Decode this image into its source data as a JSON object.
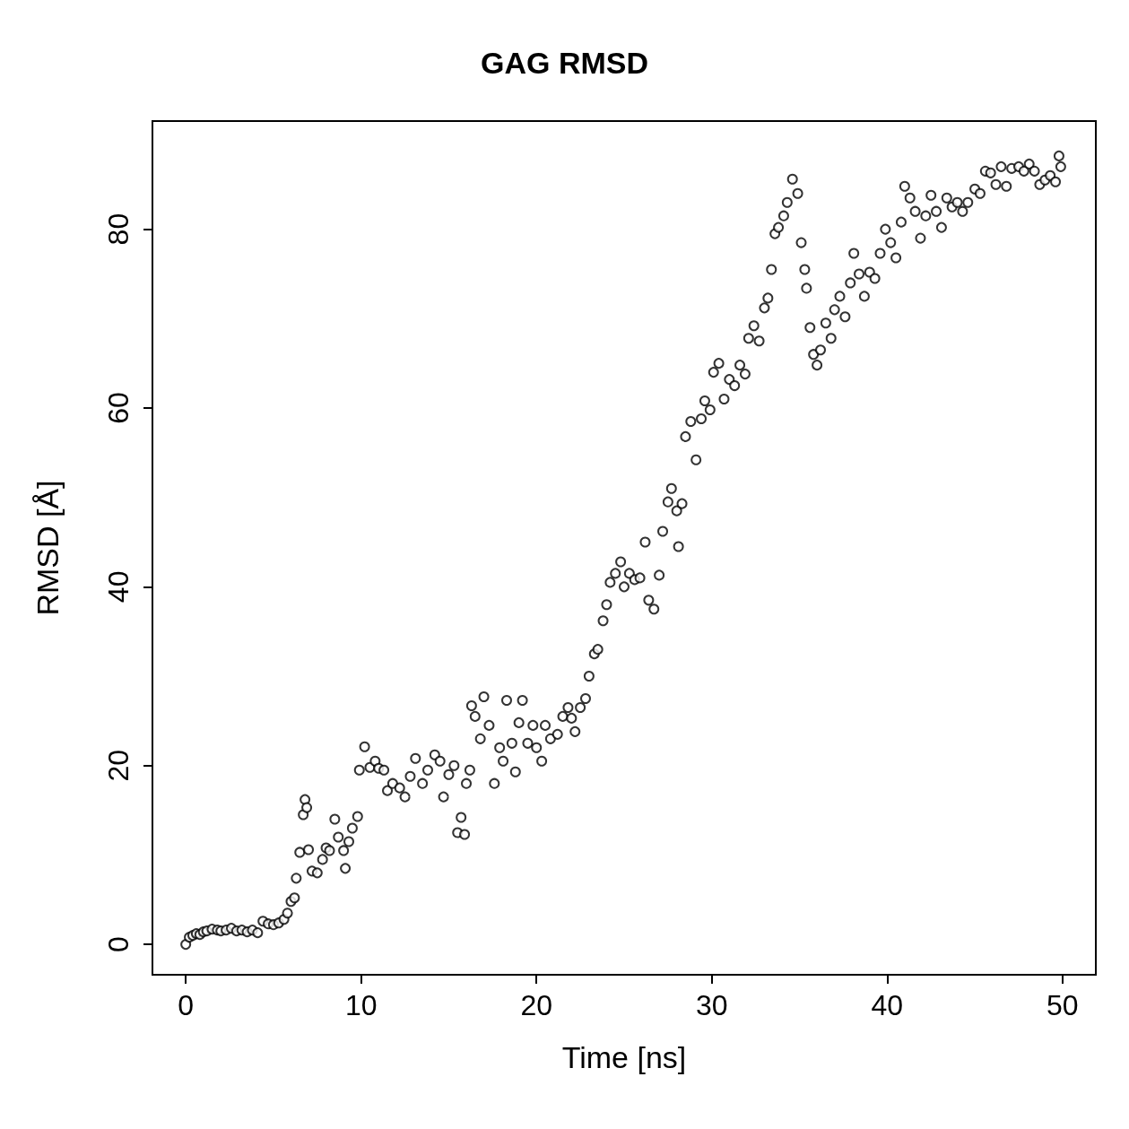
{
  "chart_data": {
    "type": "scatter",
    "title": "GAG RMSD",
    "xlabel": "Time [ns]",
    "ylabel": "RMSD [Å]",
    "marker": "circle",
    "xlim": [
      -1.9,
      51.9
    ],
    "xticks": [
      0,
      10,
      20,
      30,
      40,
      50
    ],
    "ylim": [
      -3.4,
      92.1
    ],
    "yticks": [
      0,
      20,
      40,
      60,
      80
    ],
    "series": [
      {
        "color": "#000000",
        "x": [
          0.0,
          0.2,
          0.4,
          0.6,
          0.8,
          1.0,
          1.2,
          1.5,
          1.8,
          2.0,
          2.3,
          2.6,
          2.9,
          3.2,
          3.5,
          3.8,
          4.1,
          4.4,
          4.7,
          5.0,
          5.3,
          5.6,
          5.8,
          6.0,
          6.2,
          6.3,
          6.5,
          6.7,
          6.8,
          6.9,
          7.0,
          7.2,
          7.5,
          7.8,
          8.0,
          8.2,
          8.5,
          8.7,
          9.0,
          9.1,
          9.3,
          9.5,
          9.8,
          9.9,
          10.2,
          10.5,
          10.8,
          11.0,
          11.3,
          11.5,
          11.8,
          12.2,
          12.5,
          12.8,
          13.1,
          13.5,
          13.8,
          14.2,
          14.5,
          14.7,
          15.0,
          15.3,
          15.5,
          15.7,
          15.9,
          16.0,
          16.2,
          16.3,
          16.5,
          16.8,
          17.0,
          17.3,
          17.6,
          17.9,
          18.1,
          18.3,
          18.6,
          18.8,
          19.0,
          19.2,
          19.5,
          19.8,
          20.0,
          20.3,
          20.5,
          20.8,
          21.2,
          21.5,
          21.8,
          22.0,
          22.2,
          22.5,
          22.8,
          23.0,
          23.3,
          23.5,
          23.8,
          24.0,
          24.2,
          24.5,
          24.8,
          25.0,
          25.3,
          25.6,
          25.9,
          26.2,
          26.4,
          26.7,
          27.0,
          27.2,
          27.5,
          27.7,
          28.0,
          28.1,
          28.3,
          28.5,
          28.8,
          29.1,
          29.4,
          29.6,
          29.9,
          30.1,
          30.4,
          30.7,
          31.0,
          31.3,
          31.6,
          31.9,
          32.1,
          32.4,
          32.7,
          33.0,
          33.2,
          33.4,
          33.6,
          33.8,
          34.1,
          34.3,
          34.6,
          34.9,
          35.1,
          35.3,
          35.4,
          35.6,
          35.8,
          36.0,
          36.2,
          36.5,
          36.8,
          37.0,
          37.3,
          37.6,
          37.9,
          38.1,
          38.4,
          38.7,
          39.0,
          39.3,
          39.6,
          39.9,
          40.2,
          40.5,
          40.8,
          41.0,
          41.3,
          41.6,
          41.9,
          42.2,
          42.5,
          42.8,
          43.1,
          43.4,
          43.7,
          44.0,
          44.3,
          44.6,
          45.0,
          45.3,
          45.6,
          45.9,
          46.2,
          46.5,
          46.8,
          47.1,
          47.5,
          47.8,
          48.1,
          48.4,
          48.7,
          49.0,
          49.3,
          49.6,
          49.8,
          49.9
        ],
        "values": [
          0.0,
          0.8,
          1.0,
          1.2,
          1.1,
          1.4,
          1.5,
          1.7,
          1.6,
          1.5,
          1.6,
          1.8,
          1.5,
          1.6,
          1.4,
          1.6,
          1.3,
          2.6,
          2.3,
          2.2,
          2.4,
          2.8,
          3.5,
          4.8,
          5.2,
          7.4,
          10.3,
          14.5,
          16.2,
          15.3,
          10.6,
          8.2,
          8.0,
          9.5,
          10.8,
          10.5,
          14.0,
          12.0,
          10.5,
          8.5,
          11.5,
          13.0,
          14.3,
          19.5,
          22.1,
          19.8,
          20.5,
          19.7,
          19.5,
          17.2,
          18.0,
          17.5,
          16.5,
          18.8,
          20.8,
          18.0,
          19.5,
          21.2,
          20.5,
          16.5,
          19.0,
          20.0,
          12.5,
          14.2,
          12.3,
          18.0,
          19.5,
          26.7,
          25.5,
          23.0,
          27.7,
          24.5,
          18.0,
          22.0,
          20.5,
          27.3,
          22.5,
          19.3,
          24.8,
          27.3,
          22.5,
          24.5,
          22.0,
          20.5,
          24.5,
          23.0,
          23.5,
          25.5,
          26.5,
          25.3,
          23.8,
          26.5,
          27.5,
          30.0,
          32.5,
          33.0,
          36.2,
          38.0,
          40.5,
          41.5,
          42.8,
          40.0,
          41.5,
          40.8,
          41.0,
          45.0,
          38.5,
          37.5,
          41.3,
          46.2,
          49.5,
          51.0,
          48.5,
          44.5,
          49.3,
          56.8,
          58.5,
          54.2,
          58.8,
          60.8,
          59.8,
          64.0,
          65.0,
          61.0,
          63.2,
          62.5,
          64.8,
          63.8,
          67.8,
          69.2,
          67.5,
          71.2,
          72.3,
          75.5,
          79.5,
          80.2,
          81.5,
          83.0,
          85.6,
          84.0,
          78.5,
          75.5,
          73.4,
          69.0,
          66.0,
          64.8,
          66.5,
          69.5,
          67.8,
          71.0,
          72.5,
          70.2,
          74.0,
          77.3,
          75.0,
          72.5,
          75.2,
          74.5,
          77.3,
          80.0,
          78.5,
          76.8,
          80.8,
          84.8,
          83.5,
          82.0,
          79.0,
          81.5,
          83.8,
          82.0,
          80.2,
          83.5,
          82.5,
          83.0,
          82.0,
          83.0,
          84.5,
          84.0,
          86.5,
          86.3,
          85.0,
          87.0,
          84.8,
          86.8,
          87.0,
          86.5,
          87.3,
          86.5,
          85.0,
          85.5,
          86.0,
          85.3,
          88.2,
          87.0
        ]
      }
    ]
  }
}
